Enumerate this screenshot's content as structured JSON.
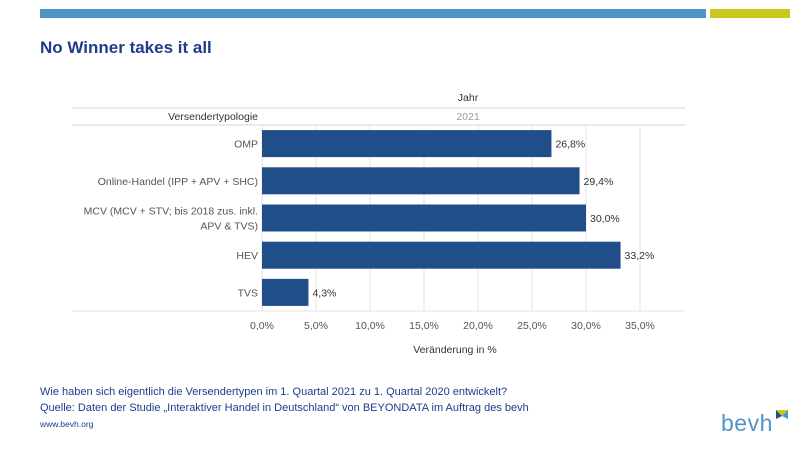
{
  "header": {
    "title": "No Winner takes it all"
  },
  "colors": {
    "accent_blue": "#4f95c7",
    "accent_green": "#c8c81e",
    "bar": "#1f4e89",
    "title": "#1f3c8c"
  },
  "chart_data": {
    "type": "bar",
    "orientation": "horizontal",
    "column_header": "Jahr",
    "column_value": "2021",
    "row_header": "Versendertypologie",
    "categories": [
      [
        "OMP"
      ],
      [
        "Online-Handel (IPP + APV + SHC)"
      ],
      [
        "MCV (MCV + STV; bis 2018 zus. inkl.",
        "APV & TVS)"
      ],
      [
        "HEV"
      ],
      [
        "TVS"
      ]
    ],
    "values": [
      26.8,
      29.4,
      30.0,
      33.2,
      4.3
    ],
    "value_labels": [
      "26,8%",
      "29,4%",
      "30,0%",
      "33,2%",
      "4,3%"
    ],
    "xlabel": "Veränderung in %",
    "xlim": [
      0,
      37.5
    ],
    "ticks": [
      0,
      5,
      10,
      15,
      20,
      25,
      30,
      35
    ],
    "tick_labels": [
      "0,0%",
      "5,0%",
      "10,0%",
      "15,0%",
      "20,0%",
      "25,0%",
      "30,0%",
      "35,0%"
    ],
    "grid": true
  },
  "footer": {
    "question": "Wie haben sich eigentlich die  Versendertypen im 1. Quartal 2021 zu 1. Quartal 2020 entwickelt?",
    "source": "Quelle: Daten der Studie „Interaktiver Handel in Deutschland“ von BEYONDATA im Auftrag des bevh",
    "url": "www.bevh.org"
  },
  "logo": {
    "text": "bevh",
    "icon": "bevh-logo-mark-icon"
  }
}
